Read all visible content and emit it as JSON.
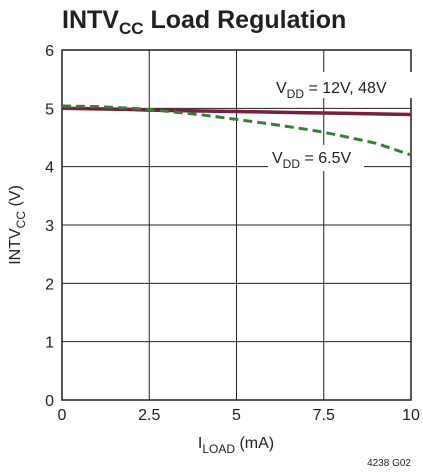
{
  "chart_data": {
    "type": "line",
    "title": {
      "main": "INTV",
      "sub": "CC",
      "rest": " Load Regulation"
    },
    "xlabel": {
      "main": "I",
      "sub": "LOAD",
      "rest": " (mA)"
    },
    "ylabel": {
      "main": "INTV",
      "sub": "CC",
      "rest": " (V)"
    },
    "xlim": [
      0,
      10
    ],
    "ylim": [
      0,
      6
    ],
    "x_ticks": [
      0,
      2.5,
      5,
      7.5,
      10
    ],
    "x_tick_labels": [
      "0",
      "2.5",
      "5",
      "7.5",
      "10"
    ],
    "y_ticks": [
      0,
      1,
      2,
      3,
      4,
      5,
      6
    ],
    "y_tick_labels": [
      "0",
      "1",
      "2",
      "3",
      "4",
      "5",
      "6"
    ],
    "grid": true,
    "series": [
      {
        "name": {
          "main": "V",
          "sub": "DD",
          "rest": " = 12V, 48V"
        },
        "style": "solid",
        "color": "#7a1f3d",
        "x": [
          0,
          1,
          2,
          2.5,
          3,
          4,
          5,
          6,
          7,
          7.5,
          8,
          9,
          10
        ],
        "y": [
          5.0,
          4.99,
          4.98,
          4.97,
          4.965,
          4.955,
          4.945,
          4.935,
          4.925,
          4.92,
          4.915,
          4.905,
          4.895
        ]
      },
      {
        "name": {
          "main": "V",
          "sub": "DD",
          "rest": " = 6.5V"
        },
        "style": "dashed",
        "color": "#3a7d3a",
        "x": [
          0,
          1,
          2,
          2.5,
          3,
          4,
          5,
          6,
          7,
          7.5,
          8,
          9,
          10
        ],
        "y": [
          5.04,
          5.03,
          5.0,
          4.98,
          4.95,
          4.89,
          4.81,
          4.73,
          4.64,
          4.59,
          4.53,
          4.4,
          4.2
        ]
      }
    ],
    "figure_id": "4238 G02"
  }
}
